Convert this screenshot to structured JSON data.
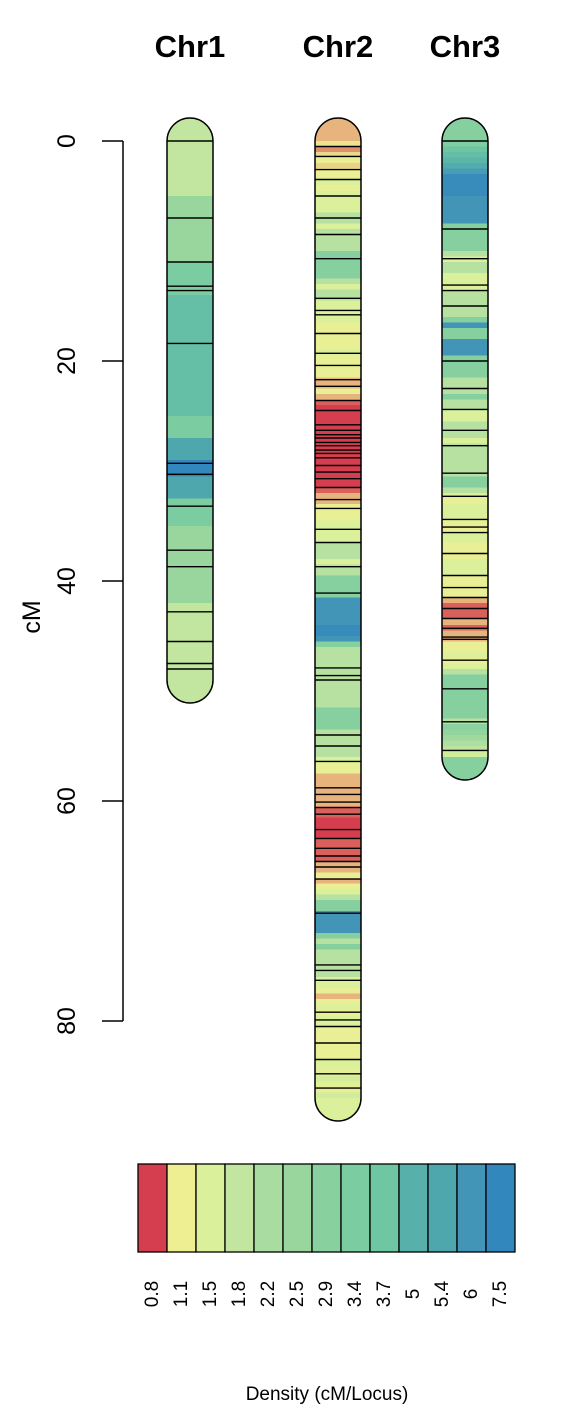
{
  "chart_data": {
    "type": "chromosome-density-map",
    "y_axis": {
      "label": "cM",
      "ticks": [
        0,
        20,
        40,
        60,
        80
      ],
      "ylim": [
        0,
        80
      ]
    },
    "chromosomes": [
      {
        "name": "Chr1",
        "length": 49.0,
        "markers": [
          0,
          7,
          11,
          13.2,
          13.6,
          18.4,
          29.3,
          30.3,
          33.2,
          37.2,
          38.7,
          42.8,
          45.5,
          47.5,
          48
        ],
        "density_segments": [
          {
            "from": 0,
            "to": 5,
            "value": 1.8
          },
          {
            "from": 5,
            "to": 11,
            "value": 2.5
          },
          {
            "from": 11,
            "to": 14,
            "value": 3.4
          },
          {
            "from": 14,
            "to": 25,
            "value": 4.2
          },
          {
            "from": 25,
            "to": 27,
            "value": 3.4
          },
          {
            "from": 27,
            "to": 29,
            "value": 5.4
          },
          {
            "from": 29,
            "to": 30.5,
            "value": 7.5
          },
          {
            "from": 30.5,
            "to": 32.5,
            "value": 5.4
          },
          {
            "from": 32.5,
            "to": 35,
            "value": 3.4
          },
          {
            "from": 35,
            "to": 42,
            "value": 2.5
          },
          {
            "from": 42,
            "to": 49,
            "value": 1.8
          }
        ]
      },
      {
        "name": "Chr2",
        "length": 87.0,
        "markers": [
          0.5,
          1.4,
          2.6,
          3.5,
          5,
          7,
          8.5,
          10.7,
          14.3,
          15.4,
          15.8,
          17.5,
          19.3,
          20.4,
          21.7,
          22.3,
          23.6,
          24.5,
          25.8,
          26.3,
          26.7,
          27,
          27.4,
          27.7,
          28.1,
          28.4,
          28.8,
          29.5,
          30.1,
          30.7,
          31.5,
          32.6,
          33.4,
          35.3,
          36.5,
          38.7,
          41.1,
          47.9,
          48.6,
          49,
          54,
          55,
          56.4,
          58.8,
          59.4,
          60.1,
          60.6,
          61.2,
          62.6,
          63.4,
          64.3,
          65,
          65.5,
          66,
          67.1,
          70.2,
          74.9,
          75.4,
          76.3,
          79.2,
          79.9,
          80.5,
          82,
          83.5,
          84.8,
          86.1
        ]
      },
      {
        "name": "Chr3",
        "length": 56.0,
        "markers": [
          0,
          8,
          10.7,
          13.1,
          13.6,
          15,
          20,
          22.5,
          24.4,
          26.3,
          27.7,
          30.2,
          32.3,
          34.4,
          35.1,
          35.6,
          37.5,
          39.5,
          40.6,
          41.5,
          42.5,
          43.4,
          44.3,
          45.1,
          45.3,
          47.2,
          49.8,
          52.8,
          55.4
        ]
      }
    ],
    "legend": {
      "title": "Density (cM/Locus)",
      "labels": [
        "0.8",
        "1.1",
        "1.5",
        "1.8",
        "2.2",
        "2.5",
        "2.9",
        "3.4",
        "3.7",
        "5",
        "5.4",
        "6",
        "7.5"
      ],
      "colors": [
        "#d53e4f",
        "#eeef92",
        "#dbf09a",
        "#c2e69f",
        "#a9dca0",
        "#98d69d",
        "#88d19f",
        "#7ccca2",
        "#6ec6a3",
        "#57b1aa",
        "#4fa7ae",
        "#4395b8",
        "#3288bd"
      ]
    }
  }
}
